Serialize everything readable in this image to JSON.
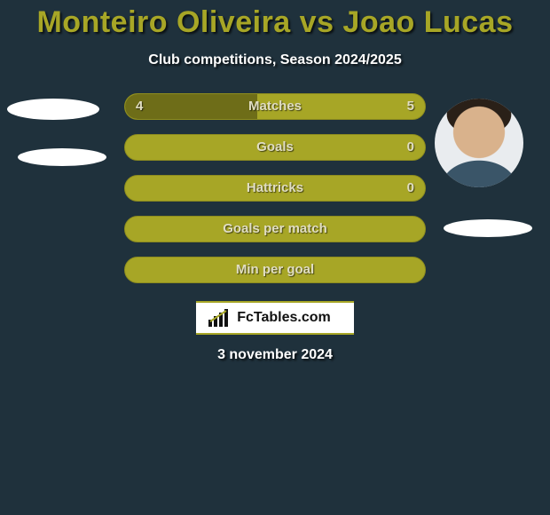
{
  "title_color": "#a7a626",
  "title": "Monteiro Oliveira vs Joao Lucas",
  "subtitle": "Club competitions, Season 2024/2025",
  "bars": {
    "base_color": "#a7a626",
    "fill_color": "#6e6d18",
    "border_color": "#8d8c1f",
    "text_color": "#e0ddc2",
    "rows": [
      {
        "label": "Matches",
        "left": "4",
        "right": "5",
        "left_pct": 44
      },
      {
        "label": "Goals",
        "left": "",
        "right": "0",
        "left_pct": 0
      },
      {
        "label": "Hattricks",
        "left": "",
        "right": "0",
        "left_pct": 0
      },
      {
        "label": "Goals per match",
        "left": "",
        "right": "",
        "left_pct": 0
      },
      {
        "label": "Min per goal",
        "left": "",
        "right": "",
        "left_pct": 0
      }
    ]
  },
  "brand": "FcTables.com",
  "date": "3 november 2024",
  "background": "#1f313c",
  "avatar_bg": "#ffffff"
}
